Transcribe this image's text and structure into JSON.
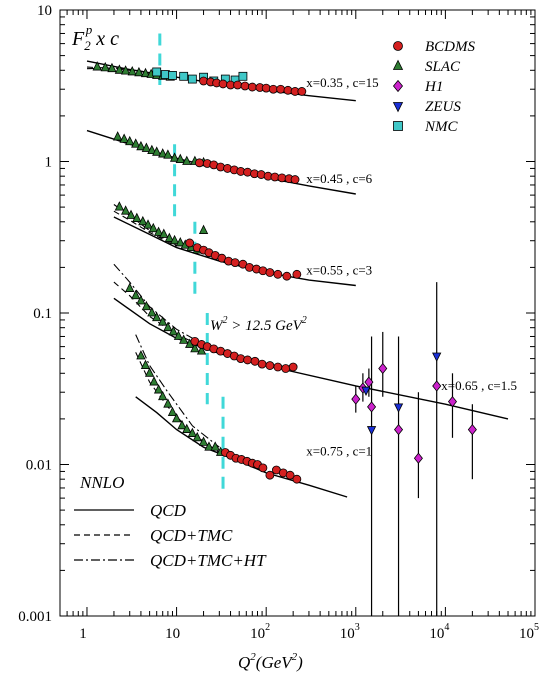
{
  "chart_data": {
    "type": "scatter",
    "title_base": "F",
    "title_sub": "2",
    "title_sup": "p",
    "title_tail": "x c",
    "x_scale": "log",
    "y_scale": "log",
    "xlim": [
      0.5,
      100000
    ],
    "ylim": [
      0.001,
      10
    ],
    "xlabel_q": "Q",
    "xlabel_sup": "2",
    "xlabel_unit": "(GeV",
    "xlabel_close": ")",
    "x_ticks": [
      {
        "value": 1,
        "base": "1",
        "exp": ""
      },
      {
        "value": 10,
        "base": "10",
        "exp": ""
      },
      {
        "value": 100,
        "base": "10",
        "exp": "2"
      },
      {
        "value": 1000,
        "base": "10",
        "exp": "3"
      },
      {
        "value": 10000,
        "base": "10",
        "exp": "4"
      },
      {
        "value": 100000,
        "base": "10",
        "exp": "5"
      }
    ],
    "y_ticks": [
      {
        "value": 10,
        "label": "10"
      },
      {
        "value": 1,
        "label": "1"
      },
      {
        "value": 0.1,
        "label": "0.1"
      },
      {
        "value": 0.01,
        "label": "0.01"
      },
      {
        "value": 0.001,
        "label": "0.001"
      }
    ],
    "legend_markers": [
      {
        "name": "BCDMS",
        "marker": "circle",
        "color": "#d42020"
      },
      {
        "name": "SLAC",
        "marker": "triangle-up",
        "color": "#2e7d32"
      },
      {
        "name": "H1",
        "marker": "diamond",
        "color": "#cc22cc"
      },
      {
        "name": "ZEUS",
        "marker": "triangle-down",
        "color": "#1a2fd6"
      },
      {
        "name": "NMC",
        "marker": "square",
        "color": "#40c8c8"
      }
    ],
    "legend_lines": {
      "title": "NNLO",
      "items": [
        {
          "name": "QCD",
          "dash": "solid"
        },
        {
          "name": "QCD+TMC",
          "dash": "dashed"
        },
        {
          "name": "QCD+TMC+HT",
          "dash": "dashdot"
        }
      ]
    },
    "cut_annotation": {
      "w": "W",
      "sup": "2",
      "text": " > 12.5 GeV",
      "sup2": "2"
    },
    "cut_line": {
      "color": "#40d8d8",
      "points": [
        {
          "x": 6.5,
          "y_top": 7.0,
          "y_bottom": 3.2
        },
        {
          "x": 9.5,
          "y_top": 1.3,
          "y_bottom": 0.4
        },
        {
          "x": 16,
          "y_top": 0.4,
          "y_bottom": 0.13
        },
        {
          "x": 22,
          "y_top": 0.1,
          "y_bottom": 0.025
        },
        {
          "x": 33,
          "y_top": 0.028,
          "y_bottom": 0.0065
        }
      ]
    },
    "series": [
      {
        "curve_label": "x=0.35 , c=15",
        "label_at": [
          280,
          3.1
        ],
        "qcd": [
          [
            1,
            4.6
          ],
          [
            3,
            4.05
          ],
          [
            10,
            3.6
          ],
          [
            30,
            3.25
          ],
          [
            100,
            2.95
          ],
          [
            300,
            2.72
          ],
          [
            1000,
            2.52
          ]
        ],
        "tmc": [
          [
            1,
            4.2
          ],
          [
            2,
            4.12
          ],
          [
            5,
            3.85
          ],
          [
            10,
            3.62
          ]
        ],
        "ht": [
          [
            1,
            4.1
          ],
          [
            2,
            4.15
          ],
          [
            5,
            3.88
          ],
          [
            10,
            3.63
          ]
        ],
        "slac": [
          [
            1.3,
            4.2
          ],
          [
            1.6,
            4.15
          ],
          [
            1.9,
            4.1
          ],
          [
            2.3,
            4.0
          ],
          [
            2.7,
            3.95
          ],
          [
            3.2,
            3.9
          ],
          [
            3.8,
            3.85
          ],
          [
            4.5,
            3.8
          ],
          [
            5.2,
            3.75
          ],
          [
            6,
            3.7
          ],
          [
            7,
            3.65
          ],
          [
            8.5,
            3.6
          ]
        ],
        "nmc": [
          [
            6,
            3.9
          ],
          [
            7.5,
            3.75
          ],
          [
            9,
            3.7
          ],
          [
            12,
            3.65
          ],
          [
            15,
            3.5
          ],
          [
            20,
            3.6
          ],
          [
            26,
            3.4
          ],
          [
            35,
            3.5
          ],
          [
            45,
            3.45
          ],
          [
            55,
            3.65
          ]
        ],
        "bcdms": [
          [
            20,
            3.4
          ],
          [
            24,
            3.35
          ],
          [
            28,
            3.3
          ],
          [
            33,
            3.25
          ],
          [
            40,
            3.2
          ],
          [
            48,
            3.2
          ],
          [
            58,
            3.15
          ],
          [
            70,
            3.1
          ],
          [
            85,
            3.08
          ],
          [
            100,
            3.05
          ],
          [
            120,
            3.0
          ],
          [
            145,
            3.0
          ],
          [
            175,
            2.95
          ],
          [
            210,
            2.9
          ],
          [
            250,
            2.9
          ]
        ]
      },
      {
        "curve_label": "x=0.45 , c=6",
        "label_at": [
          280,
          0.72
        ],
        "qcd": [
          [
            1,
            1.6
          ],
          [
            3,
            1.3
          ],
          [
            10,
            1.05
          ],
          [
            30,
            0.9
          ],
          [
            100,
            0.78
          ],
          [
            300,
            0.69
          ],
          [
            1000,
            0.61
          ]
        ],
        "tmc": [],
        "ht": [],
        "slac": [
          [
            2.2,
            1.45
          ],
          [
            2.6,
            1.4
          ],
          [
            3,
            1.35
          ],
          [
            3.5,
            1.3
          ],
          [
            4,
            1.25
          ],
          [
            4.6,
            1.22
          ],
          [
            5.3,
            1.18
          ],
          [
            6,
            1.15
          ],
          [
            7,
            1.12
          ],
          [
            8,
            1.1
          ],
          [
            9.5,
            1.05
          ],
          [
            11,
            1.03
          ],
          [
            13,
            1.0
          ],
          [
            16,
            1.0
          ],
          [
            20,
            0.98
          ]
        ],
        "nmc": [],
        "bcdms": [
          [
            18,
            0.98
          ],
          [
            22,
            0.97
          ],
          [
            26,
            0.95
          ],
          [
            31,
            0.92
          ],
          [
            37,
            0.9
          ],
          [
            44,
            0.88
          ],
          [
            52,
            0.86
          ],
          [
            62,
            0.85
          ],
          [
            74,
            0.83
          ],
          [
            88,
            0.82
          ],
          [
            105,
            0.8
          ],
          [
            125,
            0.79
          ],
          [
            150,
            0.78
          ],
          [
            180,
            0.77
          ],
          [
            210,
            0.76
          ]
        ]
      },
      {
        "curve_label": "x=0.55 , c=3",
        "label_at": [
          280,
          0.18
        ],
        "qcd": [
          [
            2,
            0.43
          ],
          [
            5,
            0.33
          ],
          [
            10,
            0.27
          ],
          [
            30,
            0.22
          ],
          [
            100,
            0.185
          ],
          [
            300,
            0.165
          ],
          [
            1000,
            0.152
          ]
        ],
        "tmc": [
          [
            2,
            0.47
          ],
          [
            3,
            0.41
          ],
          [
            5,
            0.34
          ],
          [
            10,
            0.275
          ]
        ],
        "ht": [
          [
            2,
            0.52
          ],
          [
            3,
            0.44
          ],
          [
            5,
            0.35
          ],
          [
            10,
            0.28
          ]
        ],
        "slac": [
          [
            2.3,
            0.5
          ],
          [
            2.7,
            0.47
          ],
          [
            3.1,
            0.44
          ],
          [
            3.6,
            0.42
          ],
          [
            4.2,
            0.4
          ],
          [
            4.8,
            0.38
          ],
          [
            5.5,
            0.36
          ],
          [
            6.3,
            0.34
          ],
          [
            7.2,
            0.33
          ],
          [
            8.3,
            0.31
          ],
          [
            9.5,
            0.3
          ],
          [
            11,
            0.29
          ],
          [
            12.5,
            0.28
          ],
          [
            14.5,
            0.27
          ],
          [
            17,
            0.26
          ],
          [
            20,
            0.35
          ]
        ],
        "nmc": [],
        "bcdms": [
          [
            14,
            0.29
          ],
          [
            17,
            0.27
          ],
          [
            20,
            0.26
          ],
          [
            23,
            0.25
          ],
          [
            27,
            0.24
          ],
          [
            32,
            0.23
          ],
          [
            38,
            0.22
          ],
          [
            45,
            0.215
          ],
          [
            55,
            0.21
          ],
          [
            65,
            0.2
          ],
          [
            78,
            0.195
          ],
          [
            92,
            0.19
          ],
          [
            110,
            0.185
          ],
          [
            135,
            0.18
          ],
          [
            170,
            0.175
          ],
          [
            220,
            0.18
          ]
        ]
      },
      {
        "curve_label": "x=0.65 , c=1.5",
        "label_at": [
          9000,
          0.031
        ],
        "qcd": [
          [
            2,
            0.125
          ],
          [
            5,
            0.085
          ],
          [
            10,
            0.068
          ],
          [
            30,
            0.054
          ],
          [
            100,
            0.045
          ],
          [
            1000,
            0.033
          ],
          [
            10000,
            0.025
          ],
          [
            50000,
            0.02
          ]
        ],
        "tmc": [
          [
            2,
            0.16
          ],
          [
            3,
            0.13
          ],
          [
            5,
            0.095
          ],
          [
            10,
            0.072
          ],
          [
            20,
            0.06
          ]
        ],
        "ht": [
          [
            2,
            0.21
          ],
          [
            3,
            0.16
          ],
          [
            5,
            0.11
          ],
          [
            10,
            0.078
          ],
          [
            20,
            0.062
          ]
        ],
        "slac": [
          [
            3,
            0.145
          ],
          [
            3.5,
            0.13
          ],
          [
            4,
            0.12
          ],
          [
            4.6,
            0.11
          ],
          [
            5.3,
            0.1
          ],
          [
            6,
            0.093
          ],
          [
            7,
            0.087
          ],
          [
            8,
            0.08
          ],
          [
            9.2,
            0.075
          ],
          [
            10.5,
            0.07
          ],
          [
            12,
            0.066
          ],
          [
            14,
            0.062
          ],
          [
            16,
            0.058
          ],
          [
            19,
            0.056
          ]
        ],
        "nmc": [],
        "bcdms": [
          [
            16,
            0.065
          ],
          [
            19,
            0.062
          ],
          [
            22,
            0.06
          ],
          [
            26,
            0.058
          ],
          [
            31,
            0.056
          ],
          [
            37,
            0.054
          ],
          [
            44,
            0.052
          ],
          [
            52,
            0.05
          ],
          [
            62,
            0.049
          ],
          [
            75,
            0.048
          ],
          [
            90,
            0.046
          ],
          [
            110,
            0.045
          ],
          [
            135,
            0.044
          ],
          [
            165,
            0.043
          ],
          [
            200,
            0.044
          ]
        ],
        "h1": [
          [
            1000,
            0.027
          ],
          [
            1200,
            0.032
          ],
          [
            1400,
            0.035
          ],
          [
            1500,
            0.024
          ],
          [
            2000,
            0.043
          ],
          [
            3000,
            0.017
          ],
          [
            5000,
            0.011
          ],
          [
            8000,
            0.033
          ],
          [
            12000,
            0.026
          ],
          [
            20000,
            0.017
          ]
        ],
        "zeus": [
          [
            1300,
            0.031
          ],
          [
            1500,
            0.017
          ],
          [
            3000,
            0.024
          ],
          [
            8000,
            0.052
          ]
        ],
        "errors": [
          [
            1000,
            0.022,
            0.033
          ],
          [
            1200,
            0.026,
            0.04
          ],
          [
            1400,
            0.028,
            0.043
          ],
          [
            1500,
            0.001,
            0.07
          ],
          [
            2000,
            0.028,
            0.075
          ],
          [
            3000,
            0.001,
            0.07
          ],
          [
            5000,
            0.006,
            0.03
          ],
          [
            8000,
            0.001,
            0.16
          ],
          [
            12000,
            0.015,
            0.04
          ],
          [
            20000,
            0.008,
            0.025
          ]
        ]
      },
      {
        "curve_label": "x=0.75 , c=1",
        "label_at": [
          280,
          0.0115
        ],
        "qcd": [
          [
            3.5,
            0.028
          ],
          [
            6,
            0.022
          ],
          [
            10,
            0.017
          ],
          [
            20,
            0.013
          ],
          [
            50,
            0.0105
          ],
          [
            100,
            0.0088
          ],
          [
            300,
            0.0073
          ],
          [
            800,
            0.0061
          ]
        ],
        "tmc": [
          [
            3.5,
            0.055
          ],
          [
            5,
            0.035
          ],
          [
            8,
            0.024
          ],
          [
            15,
            0.016
          ],
          [
            30,
            0.012
          ]
        ],
        "ht": [
          [
            3.5,
            0.072
          ],
          [
            5,
            0.045
          ],
          [
            8,
            0.03
          ],
          [
            15,
            0.018
          ],
          [
            30,
            0.013
          ]
        ],
        "slac": [
          [
            4,
            0.052
          ],
          [
            4.5,
            0.045
          ],
          [
            5,
            0.04
          ],
          [
            5.6,
            0.035
          ],
          [
            6.3,
            0.031
          ],
          [
            7,
            0.028
          ],
          [
            8,
            0.025
          ],
          [
            9,
            0.022
          ],
          [
            10,
            0.02
          ],
          [
            11.5,
            0.018
          ],
          [
            13,
            0.017
          ],
          [
            15,
            0.016
          ],
          [
            17,
            0.015
          ],
          [
            20,
            0.014
          ],
          [
            23,
            0.013
          ],
          [
            27,
            0.013
          ],
          [
            31,
            0.012
          ]
        ],
        "nmc": [],
        "bcdms": [
          [
            35,
            0.012
          ],
          [
            40,
            0.0115
          ],
          [
            46,
            0.011
          ],
          [
            53,
            0.0108
          ],
          [
            61,
            0.0105
          ],
          [
            70,
            0.0102
          ],
          [
            80,
            0.01
          ],
          [
            92,
            0.0095
          ],
          [
            110,
            0.0085
          ],
          [
            130,
            0.0092
          ],
          [
            155,
            0.0088
          ],
          [
            185,
            0.0085
          ],
          [
            220,
            0.008
          ]
        ]
      }
    ]
  }
}
